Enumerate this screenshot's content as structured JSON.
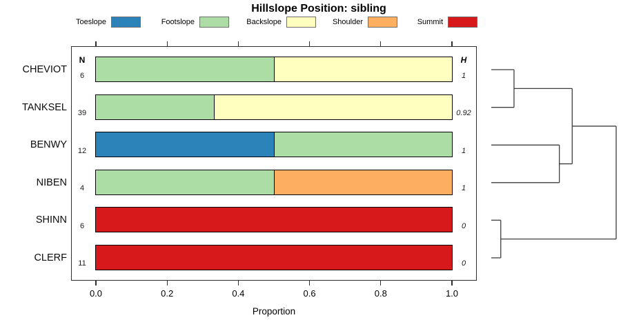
{
  "chart_data": {
    "type": "bar",
    "orientation": "horizontal",
    "stacked": true,
    "title": "Hillslope Position: sibling",
    "xlabel": "Proportion",
    "xlim": [
      0,
      1
    ],
    "xticks": [
      "0.0",
      "0.2",
      "0.4",
      "0.6",
      "0.8",
      "1.0"
    ],
    "grid": false,
    "legend_position": "top",
    "legend": [
      {
        "label": "Toeslope",
        "color": "#2B83BA"
      },
      {
        "label": "Footslope",
        "color": "#ABDDA4"
      },
      {
        "label": "Backslope",
        "color": "#FFFFBF"
      },
      {
        "label": "Shoulder",
        "color": "#FDAE61"
      },
      {
        "label": "Summit",
        "color": "#D7191C"
      }
    ],
    "n_column_header": "N",
    "h_column_header": "H",
    "rows": [
      {
        "category": "CHEVIOT",
        "n": "6",
        "shannon_h": "1",
        "segments": [
          {
            "class": "Footslope",
            "proportion": 0.5
          },
          {
            "class": "Backslope",
            "proportion": 0.5
          }
        ]
      },
      {
        "category": "TANKSEL",
        "n": "39",
        "shannon_h": "0.92",
        "segments": [
          {
            "class": "Footslope",
            "proportion": 0.333
          },
          {
            "class": "Backslope",
            "proportion": 0.667
          }
        ]
      },
      {
        "category": "BENWY",
        "n": "12",
        "shannon_h": "1",
        "segments": [
          {
            "class": "Toeslope",
            "proportion": 0.5
          },
          {
            "class": "Footslope",
            "proportion": 0.5
          }
        ]
      },
      {
        "category": "NIBEN",
        "n": "4",
        "shannon_h": "1",
        "segments": [
          {
            "class": "Footslope",
            "proportion": 0.5
          },
          {
            "class": "Shoulder",
            "proportion": 0.5
          }
        ]
      },
      {
        "category": "SHINN",
        "n": "6",
        "shannon_h": "0",
        "segments": [
          {
            "class": "Summit",
            "proportion": 1.0
          }
        ]
      },
      {
        "category": "CLERF",
        "n": "11",
        "shannon_h": "0",
        "segments": [
          {
            "class": "Summit",
            "proportion": 1.0
          }
        ]
      }
    ],
    "dendrogram": {
      "description": "cluster tree drawn to the right of the bars; heights normalized 0-1",
      "tree": {
        "h": 1.0,
        "children": [
          {
            "h": 0.648,
            "children": [
              {
                "h": 0.182,
                "children": [
                  {
                    "leaf": "CHEVIOT"
                  },
                  {
                    "leaf": "TANKSEL"
                  }
                ]
              },
              {
                "h": 0.545,
                "children": [
                  {
                    "leaf": "BENWY"
                  },
                  {
                    "leaf": "NIBEN"
                  }
                ]
              }
            ]
          },
          {
            "h": 0.076,
            "children": [
              {
                "leaf": "SHINN"
              },
              {
                "leaf": "CLERF"
              }
            ]
          }
        ]
      }
    }
  }
}
